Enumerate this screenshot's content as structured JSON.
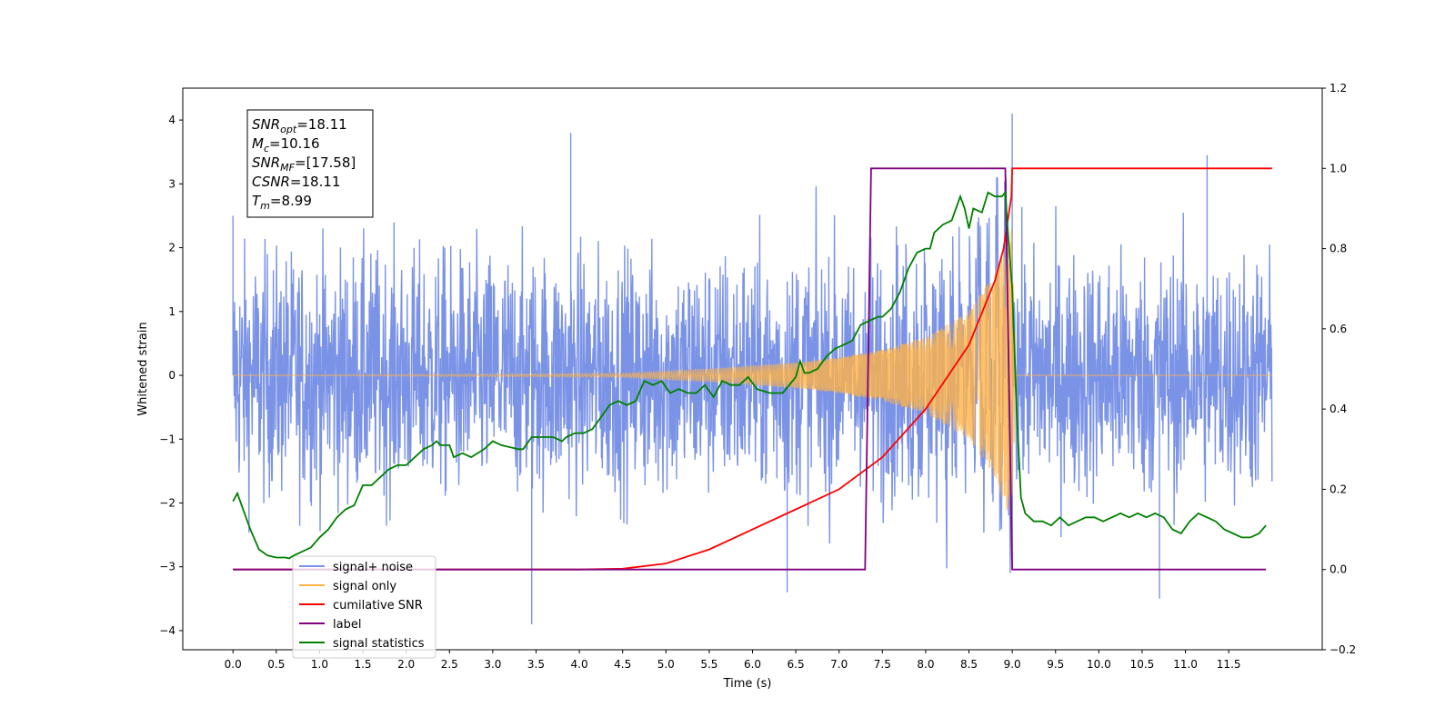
{
  "chart_data": {
    "type": "line",
    "xlabel": "Time (s)",
    "ylabel": "Whitened strain",
    "xlim": [
      -0.58,
      12.58
    ],
    "ylim": [
      -4.3,
      4.5
    ],
    "y2lim": [
      -0.2,
      1.2
    ],
    "x_ticks": [
      "0.0",
      "0.5",
      "1.0",
      "1.5",
      "2.0",
      "2.5",
      "3.0",
      "3.5",
      "4.0",
      "4.5",
      "5.0",
      "5.5",
      "6.0",
      "6.5",
      "7.0",
      "7.5",
      "8.0",
      "8.5",
      "9.0",
      "9.5",
      "10.0",
      "10.5",
      "11.0",
      "11.5"
    ],
    "y_ticks": [
      "4",
      "3",
      "2",
      "1",
      "0",
      "−1",
      "−2",
      "−3",
      "−4"
    ],
    "y2_ticks": [
      "1.2",
      "1.0",
      "0.8",
      "0.6",
      "0.4",
      "0.2",
      "0.0",
      "−0.2"
    ],
    "annotation": {
      "lines": [
        {
          "base": "SNR",
          "sub": "opt",
          "value": "=18.11"
        },
        {
          "base": "M",
          "sub": "c",
          "value": "=10.16"
        },
        {
          "base": "SNR",
          "sub": "MF",
          "value": "=[17.58]"
        },
        {
          "base": "CSNR",
          "sub": "",
          "value": "=18.11"
        },
        {
          "base": "T",
          "sub": "m",
          "value": "=8.99"
        }
      ]
    },
    "legend": {
      "placement": "lower-left",
      "entries": [
        {
          "label": "signal+ noise",
          "color": "#7b93e6"
        },
        {
          "label": "signal only",
          "color": "#ffb347"
        },
        {
          "label": "cumilative SNR",
          "color": "#ff0000"
        },
        {
          "label": "label",
          "color": "#800080"
        },
        {
          "label": "signal statistics",
          "color": "#008000"
        }
      ]
    },
    "series": [
      {
        "name": "signal+ noise",
        "axis": "left",
        "color": "#7b93e6",
        "t_range": [
          0.0,
          12.0
        ],
        "envelope_peak": 3.1,
        "spikes": [
          [
            0.0,
            2.5
          ],
          [
            3.45,
            -3.9
          ],
          [
            3.9,
            3.8
          ],
          [
            9.0,
            4.1
          ],
          [
            11.25,
            3.45
          ],
          [
            6.4,
            -3.4
          ],
          [
            10.7,
            -3.5
          ]
        ]
      },
      {
        "name": "signal only",
        "axis": "left",
        "color": "#ffb347",
        "t_range": [
          0.0,
          12.0
        ],
        "merger_time": 8.99,
        "envelope": [
          [
            0.0,
            0.0
          ],
          [
            4.5,
            0.03
          ],
          [
            5.5,
            0.1
          ],
          [
            6.5,
            0.2
          ],
          [
            7.0,
            0.28
          ],
          [
            7.5,
            0.4
          ],
          [
            8.0,
            0.6
          ],
          [
            8.5,
            1.0
          ],
          [
            8.8,
            1.6
          ],
          [
            8.99,
            2.3
          ],
          [
            9.05,
            0.0
          ],
          [
            12.0,
            0.0
          ]
        ]
      },
      {
        "name": "cumilative SNR",
        "axis": "right",
        "color": "#ff0000",
        "points": [
          [
            0.0,
            0.0
          ],
          [
            4.0,
            0.0
          ],
          [
            4.5,
            0.002
          ],
          [
            5.0,
            0.015
          ],
          [
            5.5,
            0.05
          ],
          [
            6.0,
            0.1
          ],
          [
            6.5,
            0.15
          ],
          [
            7.0,
            0.2
          ],
          [
            7.5,
            0.28
          ],
          [
            8.0,
            0.4
          ],
          [
            8.5,
            0.56
          ],
          [
            8.8,
            0.72
          ],
          [
            8.9,
            0.8
          ],
          [
            8.99,
            0.93
          ],
          [
            9.0,
            1.0
          ],
          [
            12.0,
            1.0
          ]
        ]
      },
      {
        "name": "label",
        "axis": "right",
        "color": "#800080",
        "points": [
          [
            0.0,
            0.0
          ],
          [
            7.3,
            0.0
          ],
          [
            7.37,
            1.0
          ],
          [
            8.92,
            1.0
          ],
          [
            9.0,
            0.0
          ],
          [
            11.93,
            0.0
          ]
        ]
      },
      {
        "name": "signal statistics",
        "axis": "right",
        "color": "#008000",
        "points": [
          [
            0.0,
            0.17
          ],
          [
            0.05,
            0.19
          ],
          [
            0.1,
            0.16
          ],
          [
            0.2,
            0.1
          ],
          [
            0.3,
            0.05
          ],
          [
            0.4,
            0.035
          ],
          [
            0.5,
            0.03
          ],
          [
            0.6,
            0.03
          ],
          [
            0.65,
            0.028
          ],
          [
            0.7,
            0.035
          ],
          [
            0.8,
            0.045
          ],
          [
            0.9,
            0.055
          ],
          [
            1.0,
            0.08
          ],
          [
            1.1,
            0.1
          ],
          [
            1.2,
            0.13
          ],
          [
            1.3,
            0.15
          ],
          [
            1.4,
            0.16
          ],
          [
            1.5,
            0.21
          ],
          [
            1.6,
            0.21
          ],
          [
            1.7,
            0.23
          ],
          [
            1.8,
            0.25
          ],
          [
            1.9,
            0.26
          ],
          [
            2.0,
            0.26
          ],
          [
            2.1,
            0.28
          ],
          [
            2.2,
            0.3
          ],
          [
            2.3,
            0.31
          ],
          [
            2.35,
            0.32
          ],
          [
            2.4,
            0.31
          ],
          [
            2.5,
            0.31
          ],
          [
            2.55,
            0.28
          ],
          [
            2.65,
            0.29
          ],
          [
            2.75,
            0.28
          ],
          [
            2.9,
            0.3
          ],
          [
            3.0,
            0.32
          ],
          [
            3.1,
            0.31
          ],
          [
            3.2,
            0.305
          ],
          [
            3.3,
            0.3
          ],
          [
            3.35,
            0.3
          ],
          [
            3.45,
            0.33
          ],
          [
            3.55,
            0.33
          ],
          [
            3.7,
            0.33
          ],
          [
            3.8,
            0.32
          ],
          [
            3.85,
            0.33
          ],
          [
            3.95,
            0.34
          ],
          [
            4.05,
            0.34
          ],
          [
            4.15,
            0.35
          ],
          [
            4.25,
            0.38
          ],
          [
            4.35,
            0.41
          ],
          [
            4.45,
            0.42
          ],
          [
            4.55,
            0.41
          ],
          [
            4.65,
            0.42
          ],
          [
            4.75,
            0.47
          ],
          [
            4.85,
            0.46
          ],
          [
            4.95,
            0.47
          ],
          [
            5.05,
            0.44
          ],
          [
            5.15,
            0.45
          ],
          [
            5.25,
            0.44
          ],
          [
            5.35,
            0.44
          ],
          [
            5.45,
            0.46
          ],
          [
            5.55,
            0.43
          ],
          [
            5.65,
            0.47
          ],
          [
            5.75,
            0.46
          ],
          [
            5.85,
            0.46
          ],
          [
            5.95,
            0.48
          ],
          [
            6.05,
            0.45
          ],
          [
            6.2,
            0.44
          ],
          [
            6.35,
            0.44
          ],
          [
            6.5,
            0.48
          ],
          [
            6.55,
            0.52
          ],
          [
            6.6,
            0.49
          ],
          [
            6.65,
            0.49
          ],
          [
            6.75,
            0.5
          ],
          [
            6.85,
            0.53
          ],
          [
            6.95,
            0.55
          ],
          [
            7.05,
            0.56
          ],
          [
            7.15,
            0.57
          ],
          [
            7.25,
            0.61
          ],
          [
            7.35,
            0.62
          ],
          [
            7.45,
            0.63
          ],
          [
            7.5,
            0.63
          ],
          [
            7.6,
            0.65
          ],
          [
            7.7,
            0.69
          ],
          [
            7.8,
            0.75
          ],
          [
            7.9,
            0.79
          ],
          [
            8.0,
            0.8
          ],
          [
            8.05,
            0.8
          ],
          [
            8.1,
            0.84
          ],
          [
            8.2,
            0.86
          ],
          [
            8.3,
            0.87
          ],
          [
            8.4,
            0.93
          ],
          [
            8.45,
            0.9
          ],
          [
            8.5,
            0.85
          ],
          [
            8.55,
            0.9
          ],
          [
            8.65,
            0.89
          ],
          [
            8.72,
            0.94
          ],
          [
            8.8,
            0.93
          ],
          [
            8.88,
            0.93
          ],
          [
            8.92,
            0.94
          ],
          [
            8.95,
            0.84
          ],
          [
            9.0,
            0.7
          ],
          [
            9.05,
            0.4
          ],
          [
            9.1,
            0.18
          ],
          [
            9.15,
            0.14
          ],
          [
            9.25,
            0.12
          ],
          [
            9.35,
            0.12
          ],
          [
            9.45,
            0.11
          ],
          [
            9.55,
            0.13
          ],
          [
            9.65,
            0.11
          ],
          [
            9.75,
            0.12
          ],
          [
            9.85,
            0.13
          ],
          [
            9.95,
            0.13
          ],
          [
            10.05,
            0.12
          ],
          [
            10.15,
            0.13
          ],
          [
            10.25,
            0.14
          ],
          [
            10.35,
            0.13
          ],
          [
            10.45,
            0.14
          ],
          [
            10.55,
            0.13
          ],
          [
            10.65,
            0.14
          ],
          [
            10.75,
            0.13
          ],
          [
            10.85,
            0.1
          ],
          [
            10.95,
            0.09
          ],
          [
            11.05,
            0.12
          ],
          [
            11.15,
            0.14
          ],
          [
            11.25,
            0.13
          ],
          [
            11.35,
            0.12
          ],
          [
            11.45,
            0.1
          ],
          [
            11.55,
            0.09
          ],
          [
            11.65,
            0.08
          ],
          [
            11.75,
            0.08
          ],
          [
            11.85,
            0.09
          ],
          [
            11.93,
            0.11
          ]
        ]
      }
    ]
  }
}
